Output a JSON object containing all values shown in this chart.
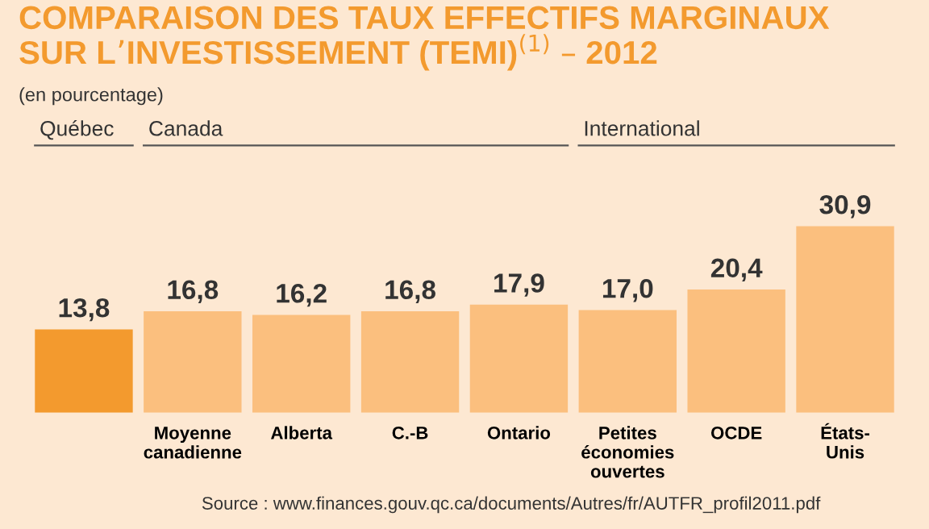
{
  "chart_data": {
    "type": "bar",
    "title": "COMPARAISON DES TAUX EFFECTIFS MARGINAUX\nSUR L’INVESTISSEMENT (TEMI)$^{(1)}$ – 2012",
    "subtitle": "(en pourcentage)",
    "categories": [
      null,
      "Moyenne\ncanadienne",
      "Alberta",
      "C.-B",
      "Ontario",
      "Petites\néconomies\nouvertes",
      "OCDE",
      "États-\nUnis"
    ],
    "values": [
      13.8,
      16.8,
      16.2,
      16.8,
      17.9,
      17.0,
      20.4,
      30.9
    ],
    "value_labels": [
      "13,8",
      "16,8",
      "16,2",
      "16,8",
      "17,9",
      "17,0",
      "20,4",
      "30,9"
    ],
    "colors": [
      "#f39a2e",
      "#fbbf7e",
      "#fbbf7e",
      "#fbbf7e",
      "#fbbf7e",
      "#fbbf7e",
      "#fbbf7e",
      "#fbbf7e"
    ],
    "annotations": [
      "Québec",
      "Canada",
      "International",
      "Source : www.finances.gouv.qc.ca/documents/Autres/fr/AUTFR_profil2011.pdf"
    ]
  }
}
